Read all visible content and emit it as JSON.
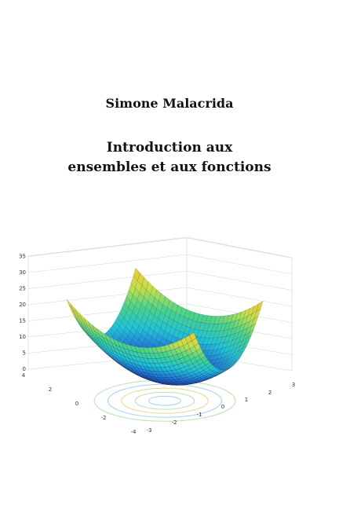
{
  "author": "Simone Malacrida",
  "title_line1": "Introduction aux",
  "title_line2": "ensembles et aux fonctions",
  "chart_data": {
    "type": "surface3d",
    "function": "z = x^2 + y^2",
    "zticks": [
      "0",
      "5",
      "10",
      "15",
      "20",
      "25",
      "30",
      "35"
    ],
    "yticks": [
      "4",
      "2",
      "0",
      "-2",
      "-4"
    ],
    "xticks": [
      "-3",
      "-2",
      "-1",
      "0",
      "1",
      "2",
      "3"
    ],
    "zlim": [
      0,
      35
    ],
    "colormap": [
      "#1a2f9a",
      "#1e6fd6",
      "#1fc3d8",
      "#46d38c",
      "#c7e04a",
      "#f2c52b",
      "#f07d1e",
      "#cc2a12"
    ],
    "grid": true,
    "contour_colors": [
      "#9fd1e8",
      "#b8e2b0",
      "#e8d98a"
    ]
  }
}
